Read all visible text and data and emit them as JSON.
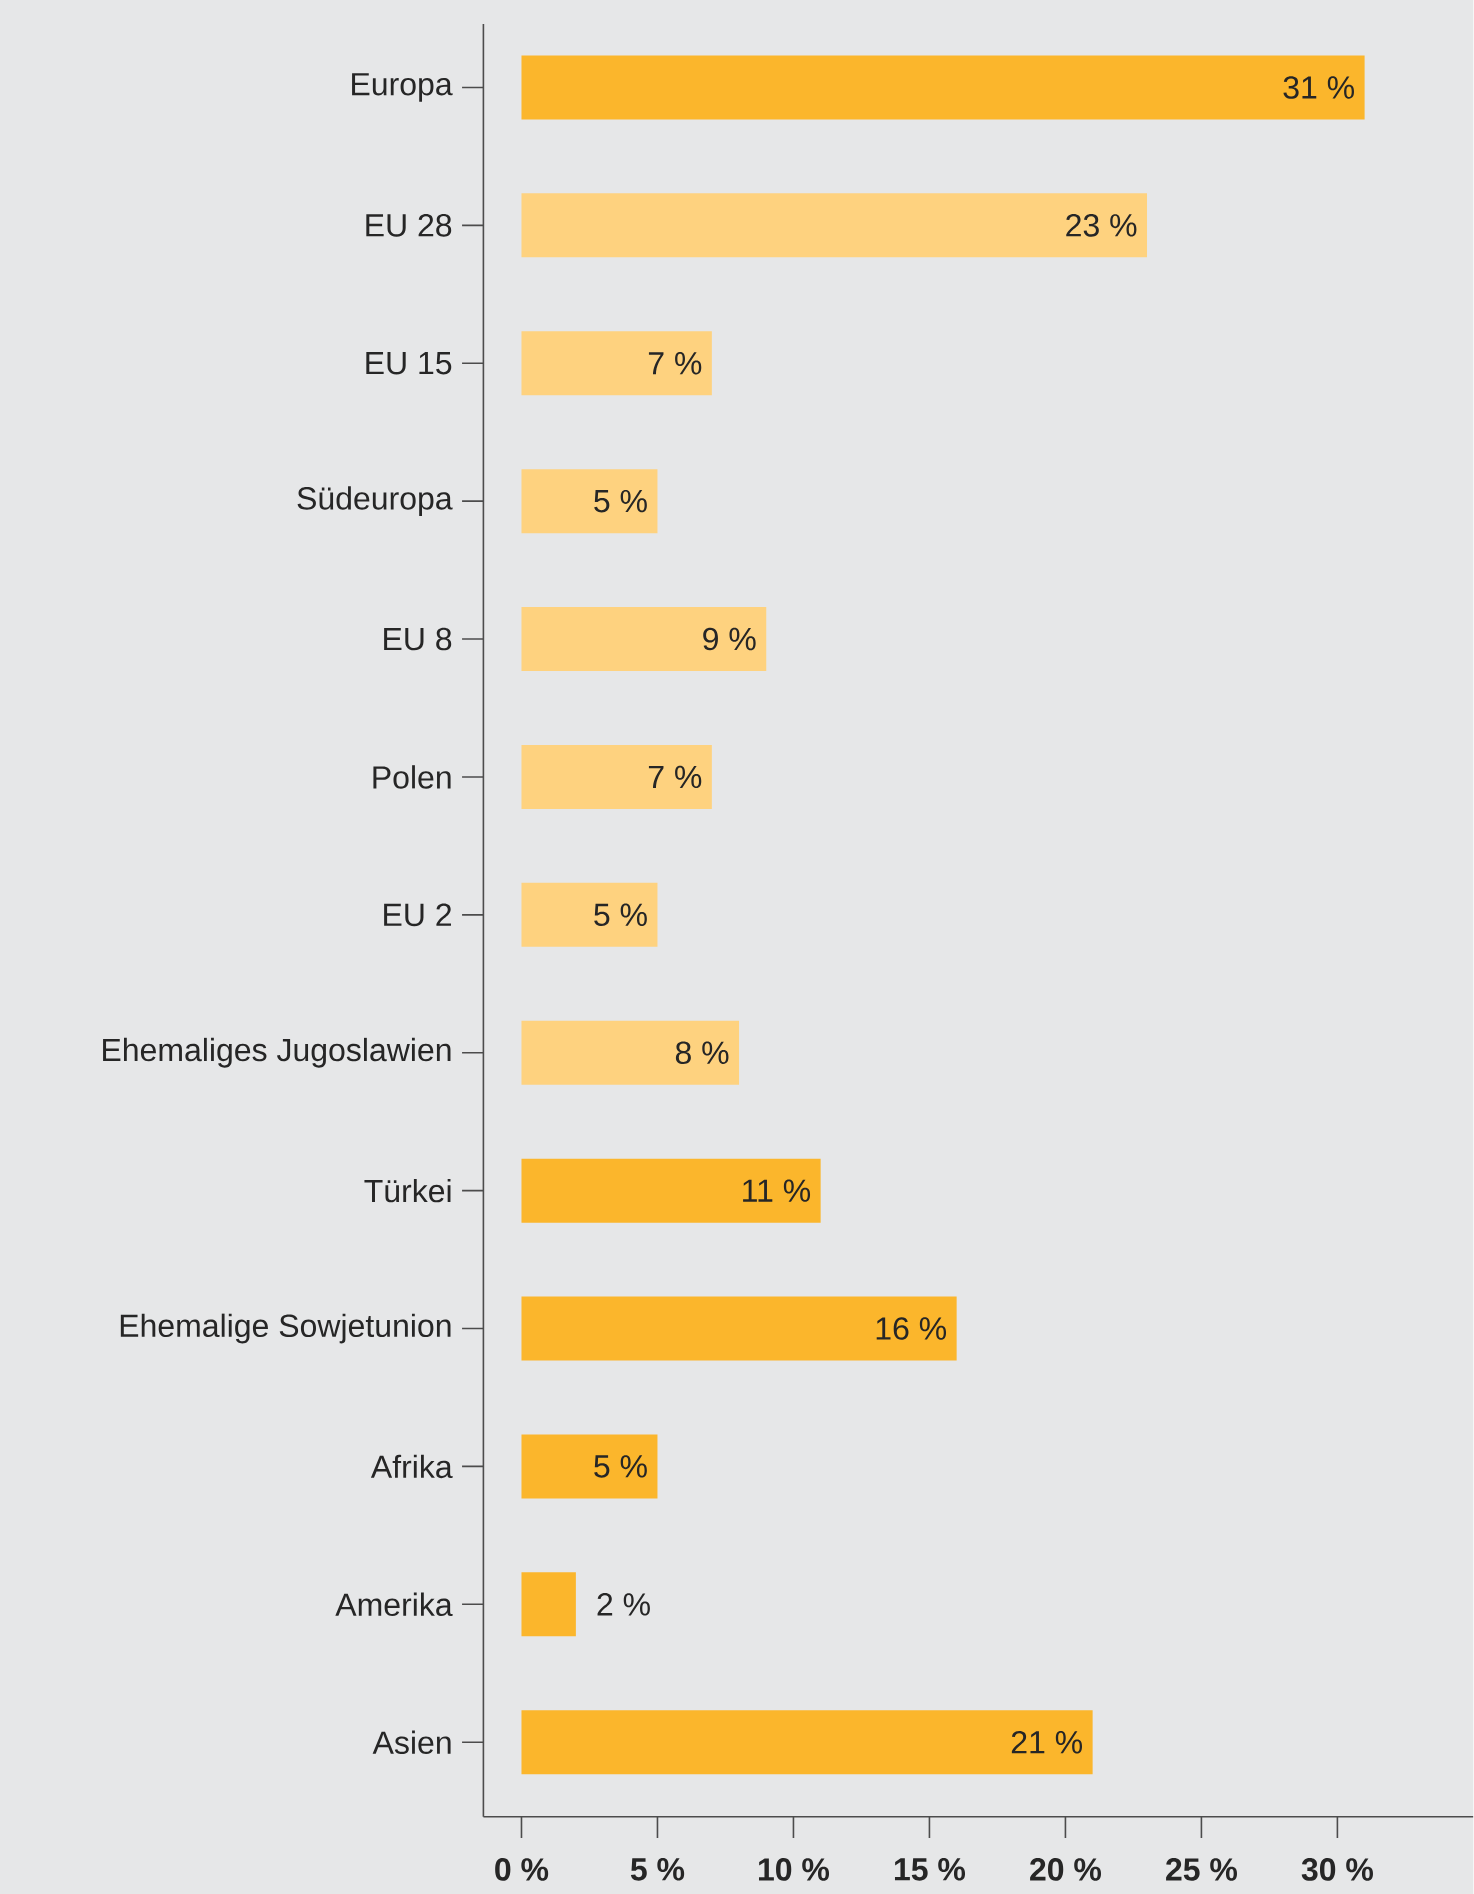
{
  "chart_data": {
    "type": "bar",
    "orientation": "horizontal",
    "categories": [
      "Europa",
      "EU 28",
      "EU 15",
      "Südeuropa",
      "EU 8",
      "Polen",
      "EU 2",
      "Ehemaliges Jugoslawien",
      "Türkei",
      "Ehemalige Sowjetunion",
      "Afrika",
      "Amerika",
      "Asien"
    ],
    "values": [
      31,
      23,
      7,
      5,
      9,
      7,
      5,
      8,
      11,
      16,
      5,
      2,
      21
    ],
    "value_labels": [
      "31 %",
      "23 %",
      "7 %",
      "5 %",
      "9 %",
      "7 %",
      "5 %",
      "8 %",
      "11 %",
      "16 %",
      "5 %",
      "2 %",
      "21 %"
    ],
    "colors": [
      "#fbb62c",
      "#fed27f",
      "#fed27f",
      "#fed27f",
      "#fed27f",
      "#fed27f",
      "#fed27f",
      "#fed27f",
      "#fbb62c",
      "#fbb62c",
      "#fbb62c",
      "#fbb62c",
      "#fbb62c"
    ],
    "xlim": [
      -1.4,
      35
    ],
    "xticks": [
      {
        "value": 0,
        "label": "0 %"
      },
      {
        "value": 5,
        "label": "5 %"
      },
      {
        "value": 10,
        "label": "10 %"
      },
      {
        "value": 15,
        "label": "15 %"
      },
      {
        "value": 20,
        "label": "20 %"
      },
      {
        "value": 25,
        "label": "25 %"
      },
      {
        "value": 30,
        "label": "30 %"
      }
    ],
    "grid": false
  }
}
